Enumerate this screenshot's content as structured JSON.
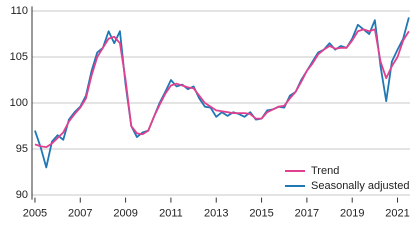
{
  "chart_data": {
    "type": "line",
    "x": [
      2005.0,
      2005.25,
      2005.5,
      2005.75,
      2006.0,
      2006.25,
      2006.5,
      2006.75,
      2007.0,
      2007.25,
      2007.5,
      2007.75,
      2008.0,
      2008.25,
      2008.5,
      2008.75,
      2009.0,
      2009.25,
      2009.5,
      2009.75,
      2010.0,
      2010.25,
      2010.5,
      2010.75,
      2011.0,
      2011.25,
      2011.5,
      2011.75,
      2012.0,
      2012.25,
      2012.5,
      2012.75,
      2013.0,
      2013.25,
      2013.5,
      2013.75,
      2014.0,
      2014.25,
      2014.5,
      2014.75,
      2015.0,
      2015.25,
      2015.5,
      2015.75,
      2016.0,
      2016.25,
      2016.5,
      2016.75,
      2017.0,
      2017.25,
      2017.5,
      2017.75,
      2018.0,
      2018.25,
      2018.5,
      2018.75,
      2019.0,
      2019.25,
      2019.5,
      2019.75,
      2020.0,
      2020.25,
      2020.5,
      2020.75,
      2021.0,
      2021.25,
      2021.5
    ],
    "series": [
      {
        "name": "Trend",
        "color": "#e0418f",
        "values": [
          95.5,
          95.3,
          95.2,
          95.6,
          96.2,
          96.8,
          98.0,
          98.8,
          99.5,
          100.5,
          103.0,
          105.0,
          106.0,
          107.0,
          107.2,
          106.5,
          102.5,
          97.5,
          96.7,
          96.6,
          97.0,
          98.5,
          99.8,
          101.0,
          101.9,
          102.1,
          101.9,
          101.7,
          101.6,
          100.8,
          100.0,
          99.6,
          99.2,
          99.1,
          99.0,
          98.9,
          98.9,
          98.9,
          98.8,
          98.3,
          98.3,
          99.0,
          99.3,
          99.6,
          99.7,
          100.5,
          101.2,
          102.3,
          103.5,
          104.3,
          105.3,
          105.8,
          106.2,
          105.9,
          106.0,
          106.0,
          106.8,
          107.8,
          108.0,
          107.8,
          108.0,
          104.5,
          102.7,
          104.0,
          105.0,
          106.8,
          107.8
        ]
      },
      {
        "name": "Seasonally adjusted",
        "color": "#1f77b4",
        "values": [
          97.0,
          95.2,
          93.0,
          95.8,
          96.5,
          96.0,
          98.2,
          99.0,
          99.6,
          100.8,
          103.5,
          105.5,
          106.0,
          107.8,
          106.5,
          107.8,
          102.0,
          97.5,
          96.3,
          96.8,
          97.0,
          98.5,
          100.0,
          101.2,
          102.5,
          101.8,
          102.0,
          101.5,
          101.8,
          100.5,
          99.6,
          99.5,
          98.5,
          99.0,
          98.6,
          99.0,
          98.8,
          98.5,
          99.0,
          98.2,
          98.3,
          99.2,
          99.3,
          99.6,
          99.5,
          100.8,
          101.2,
          102.5,
          103.5,
          104.5,
          105.5,
          105.8,
          106.5,
          105.8,
          106.2,
          106.0,
          107.0,
          108.5,
          108.0,
          107.5,
          109.0,
          104.0,
          100.2,
          104.5,
          105.8,
          107.0,
          109.3
        ]
      }
    ],
    "xlim": [
      2004.87,
      2021.55
    ],
    "xticks": [
      2005,
      2007,
      2009,
      2011,
      2013,
      2015,
      2017,
      2019,
      2021
    ],
    "ylim": [
      89.5,
      110.5
    ],
    "yticks": [
      90,
      95,
      100,
      105,
      110
    ],
    "grid": true,
    "legend": "lower right"
  }
}
